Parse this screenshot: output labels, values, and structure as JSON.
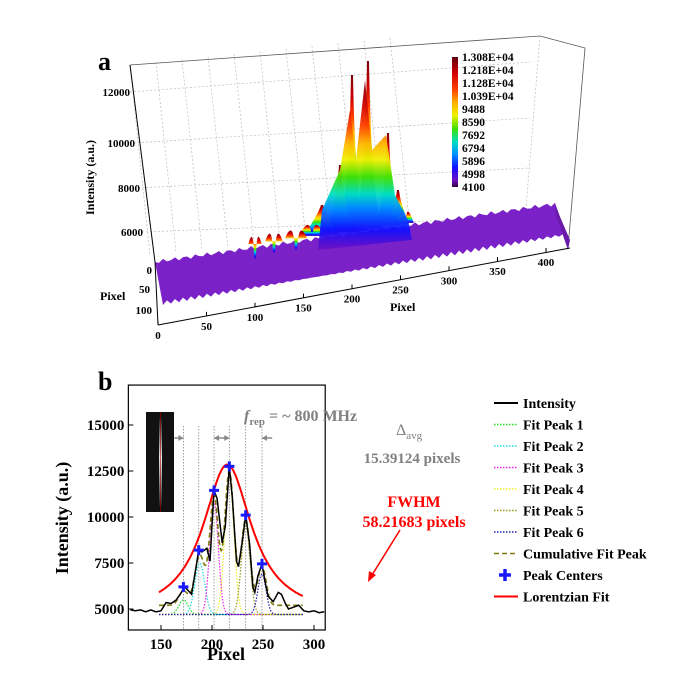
{
  "panel_a": {
    "label": "a",
    "colorbar": {
      "ticks": [
        "1.308E+04",
        "1.218E+04",
        "1.128E+04",
        "1.039E+04",
        "9488",
        "8590",
        "7692",
        "6794",
        "5896",
        "4998",
        "4100"
      ],
      "colors": [
        "#7a0010",
        "#c00000",
        "#ff1a00",
        "#ff6a00",
        "#ffb000",
        "#f0f000",
        "#40e000",
        "#00e0c0",
        "#0090ff",
        "#1010ff",
        "#7010c0"
      ]
    }
  },
  "panel_b": {
    "label": "b",
    "annotations": {
      "frep_prefix": "f",
      "frep_sub": "rep",
      "frep_value": " = ~ 800 MHz",
      "delta": "Δ",
      "delta_sub": "avg",
      "delta_value": "15.39124 pixels",
      "fwhm_title": "FWHM",
      "fwhm_value": "58.21683 pixels"
    },
    "legend": [
      {
        "label": "Intensity",
        "color": "#000000",
        "style": "solid"
      },
      {
        "label": "Fit Peak 1",
        "color": "#22dd22",
        "style": "dotted"
      },
      {
        "label": "Fit Peak 2",
        "color": "#22dddd",
        "style": "dotted"
      },
      {
        "label": "Fit Peak 3",
        "color": "#ee22ee",
        "style": "dotted"
      },
      {
        "label": "Fit Peak 4",
        "color": "#eeee22",
        "style": "dotted"
      },
      {
        "label": "Fit Peak 5",
        "color": "#999922",
        "style": "dotted"
      },
      {
        "label": "Fit Peak 6",
        "color": "#2222aa",
        "style": "dotted"
      },
      {
        "label": "Cumulative Fit Peak",
        "color": "#807a10",
        "style": "dashed"
      },
      {
        "label": "Peak Centers",
        "color": "#1a1aff",
        "style": "marker"
      },
      {
        "label": "Lorentzian Fit",
        "color": "#ff0000",
        "style": "solid"
      }
    ]
  },
  "chart_data": [
    {
      "type": "surface3d",
      "xlabel": "Pixel",
      "ylabel": "Pixel",
      "zlabel": "Intensity (a.u.)",
      "x_ticks": [
        "0",
        "50",
        "100",
        "150",
        "200",
        "250",
        "300",
        "350",
        "400"
      ],
      "y_ticks": [
        "0",
        "50",
        "100"
      ],
      "z_ticks": [
        "6000",
        "8000",
        "10000",
        "12000"
      ],
      "grid": true
    },
    {
      "type": "line",
      "xlabel": "Pixel",
      "ylabel": "Intensity (a.u.)",
      "xlim": [
        118,
        311
      ],
      "ylim": [
        3860,
        17170
      ],
      "x_ticks": [
        "150",
        "200",
        "250",
        "300"
      ],
      "y_ticks": [
        "5000",
        "7500",
        "10000",
        "12500",
        "15000"
      ],
      "intensity": {
        "x": [
          120,
          125,
          130,
          135,
          140,
          145,
          150,
          155,
          160,
          165,
          170,
          173,
          175,
          180,
          185,
          187,
          190,
          195,
          198,
          202,
          205,
          210,
          213,
          217,
          220,
          224,
          226,
          230,
          233,
          237,
          240,
          242,
          245,
          249,
          252,
          255,
          260,
          265,
          268,
          272,
          275,
          280,
          285,
          290,
          295,
          300,
          305,
          310
        ],
        "y": [
          4950,
          4900,
          4950,
          4850,
          4950,
          4850,
          4900,
          5350,
          5300,
          5500,
          5900,
          6200,
          6100,
          5800,
          7500,
          8200,
          8100,
          8300,
          7600,
          11450,
          11000,
          8600,
          9500,
          12750,
          11000,
          7600,
          7300,
          8800,
          10100,
          8500,
          6200,
          5900,
          6800,
          7450,
          6500,
          5700,
          5400,
          5900,
          5800,
          5300,
          5000,
          5100,
          5200,
          4900,
          4850,
          4900,
          4800,
          4850
        ]
      },
      "fit_peaks": [
        {
          "center": 172,
          "amplitude": 5500,
          "sigma": 4.5
        },
        {
          "center": 188,
          "amplitude": 7500,
          "sigma": 4.8
        },
        {
          "center": 202,
          "amplitude": 10800,
          "sigma": 4.2
        },
        {
          "center": 217,
          "amplitude": 12200,
          "sigma": 4.5
        },
        {
          "center": 233,
          "amplitude": 9500,
          "sigma": 4.3
        },
        {
          "center": 249,
          "amplitude": 6900,
          "sigma": 4.0
        }
      ],
      "fit_baseline": 4700,
      "peak_centers": {
        "x": [
          172,
          187,
          202,
          217,
          233,
          249
        ],
        "y": [
          6200,
          8200,
          11450,
          12750,
          10100,
          7450
        ]
      },
      "lorentzian": {
        "center": 215,
        "peak": 12850,
        "fwhm": 58.21683,
        "baseline": 4600,
        "x_range": [
          148,
          289
        ]
      },
      "vertical_guides": [
        172,
        187,
        202,
        217,
        233,
        249
      ],
      "legend_position": "right-outside"
    }
  ]
}
